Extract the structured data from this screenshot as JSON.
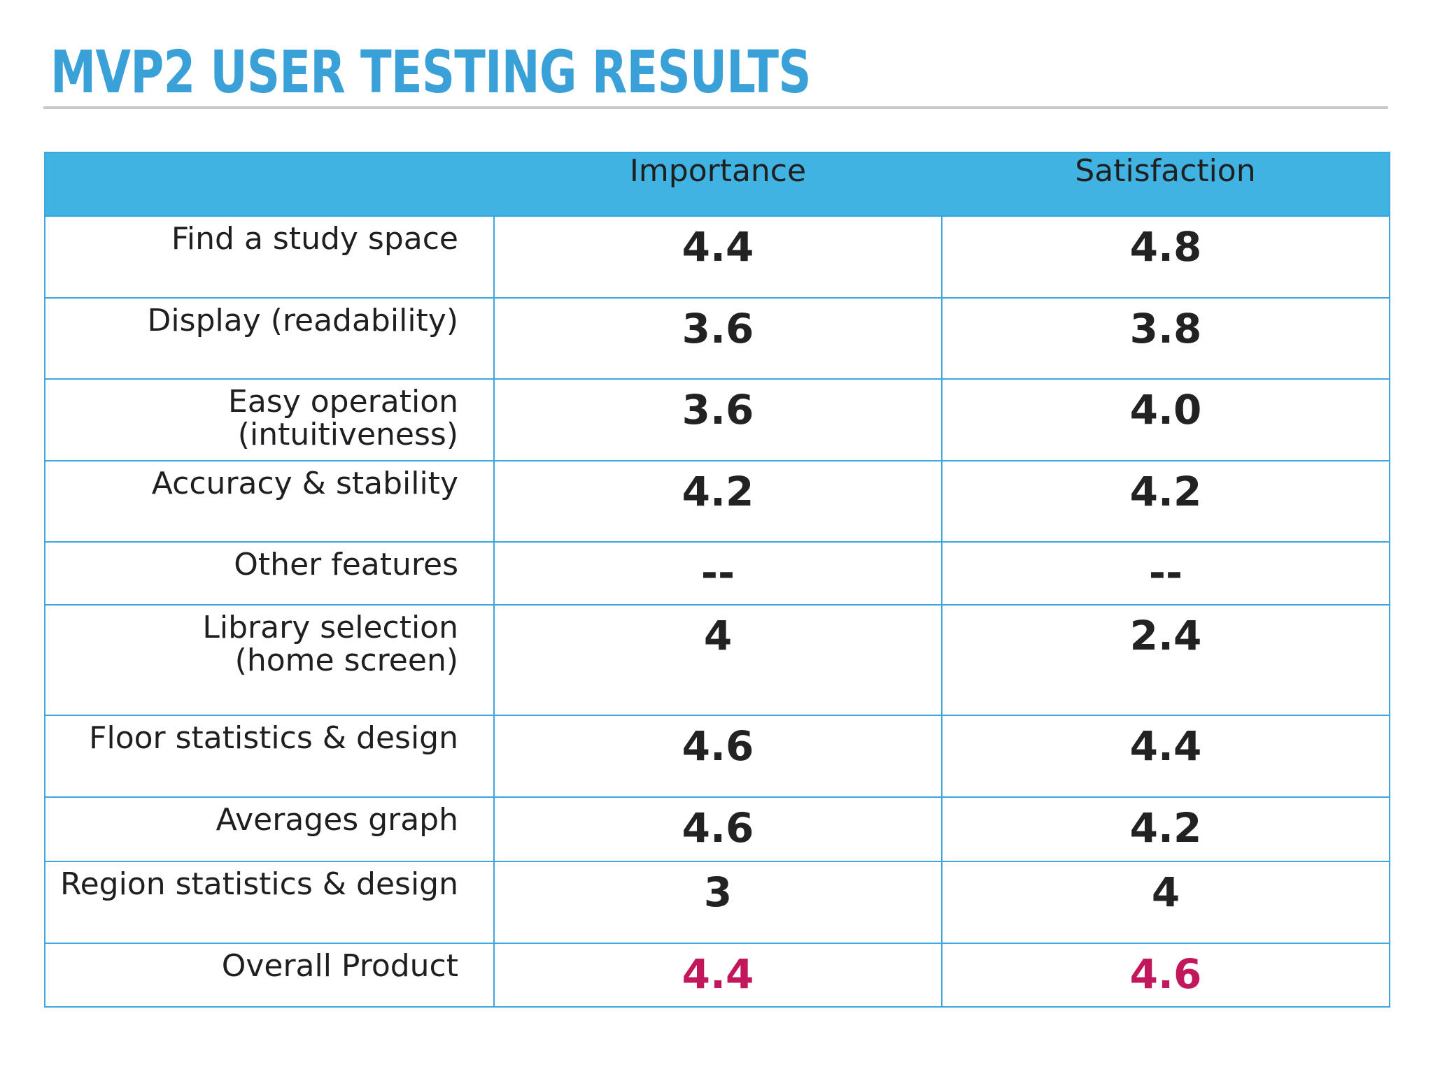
{
  "title": "MVP2 USER TESTING RESULTS",
  "colors": {
    "title": "#3aa0d8",
    "header_bg": "#41b3e2",
    "grid": "#3da7dd",
    "highlight": "#c2185b"
  },
  "table": {
    "headers": {
      "feature": "",
      "importance": "Importance",
      "satisfaction": "Satisfaction"
    },
    "rows": [
      {
        "feature": "Find a study space",
        "importance": "4.4",
        "satisfaction": "4.8"
      },
      {
        "feature": "Display (readability)",
        "importance": "3.6",
        "satisfaction": "3.8"
      },
      {
        "feature": "Easy operation (intuitiveness)",
        "importance": "3.6",
        "satisfaction": "4.0"
      },
      {
        "feature": "Accuracy & stability",
        "importance": "4.2",
        "satisfaction": "4.2"
      },
      {
        "feature": "Other features",
        "importance": "--",
        "satisfaction": "--"
      },
      {
        "feature": "Library selection (home screen)",
        "importance": "4",
        "satisfaction": "2.4"
      },
      {
        "feature": "Floor statistics & design",
        "importance": "4.6",
        "satisfaction": "4.4"
      },
      {
        "feature": "Averages graph",
        "importance": "4.6",
        "satisfaction": "4.2"
      },
      {
        "feature": "Region statistics & design",
        "importance": "3",
        "satisfaction": "4"
      },
      {
        "feature": "Overall Product",
        "importance": "4.4",
        "satisfaction": "4.6"
      }
    ]
  }
}
